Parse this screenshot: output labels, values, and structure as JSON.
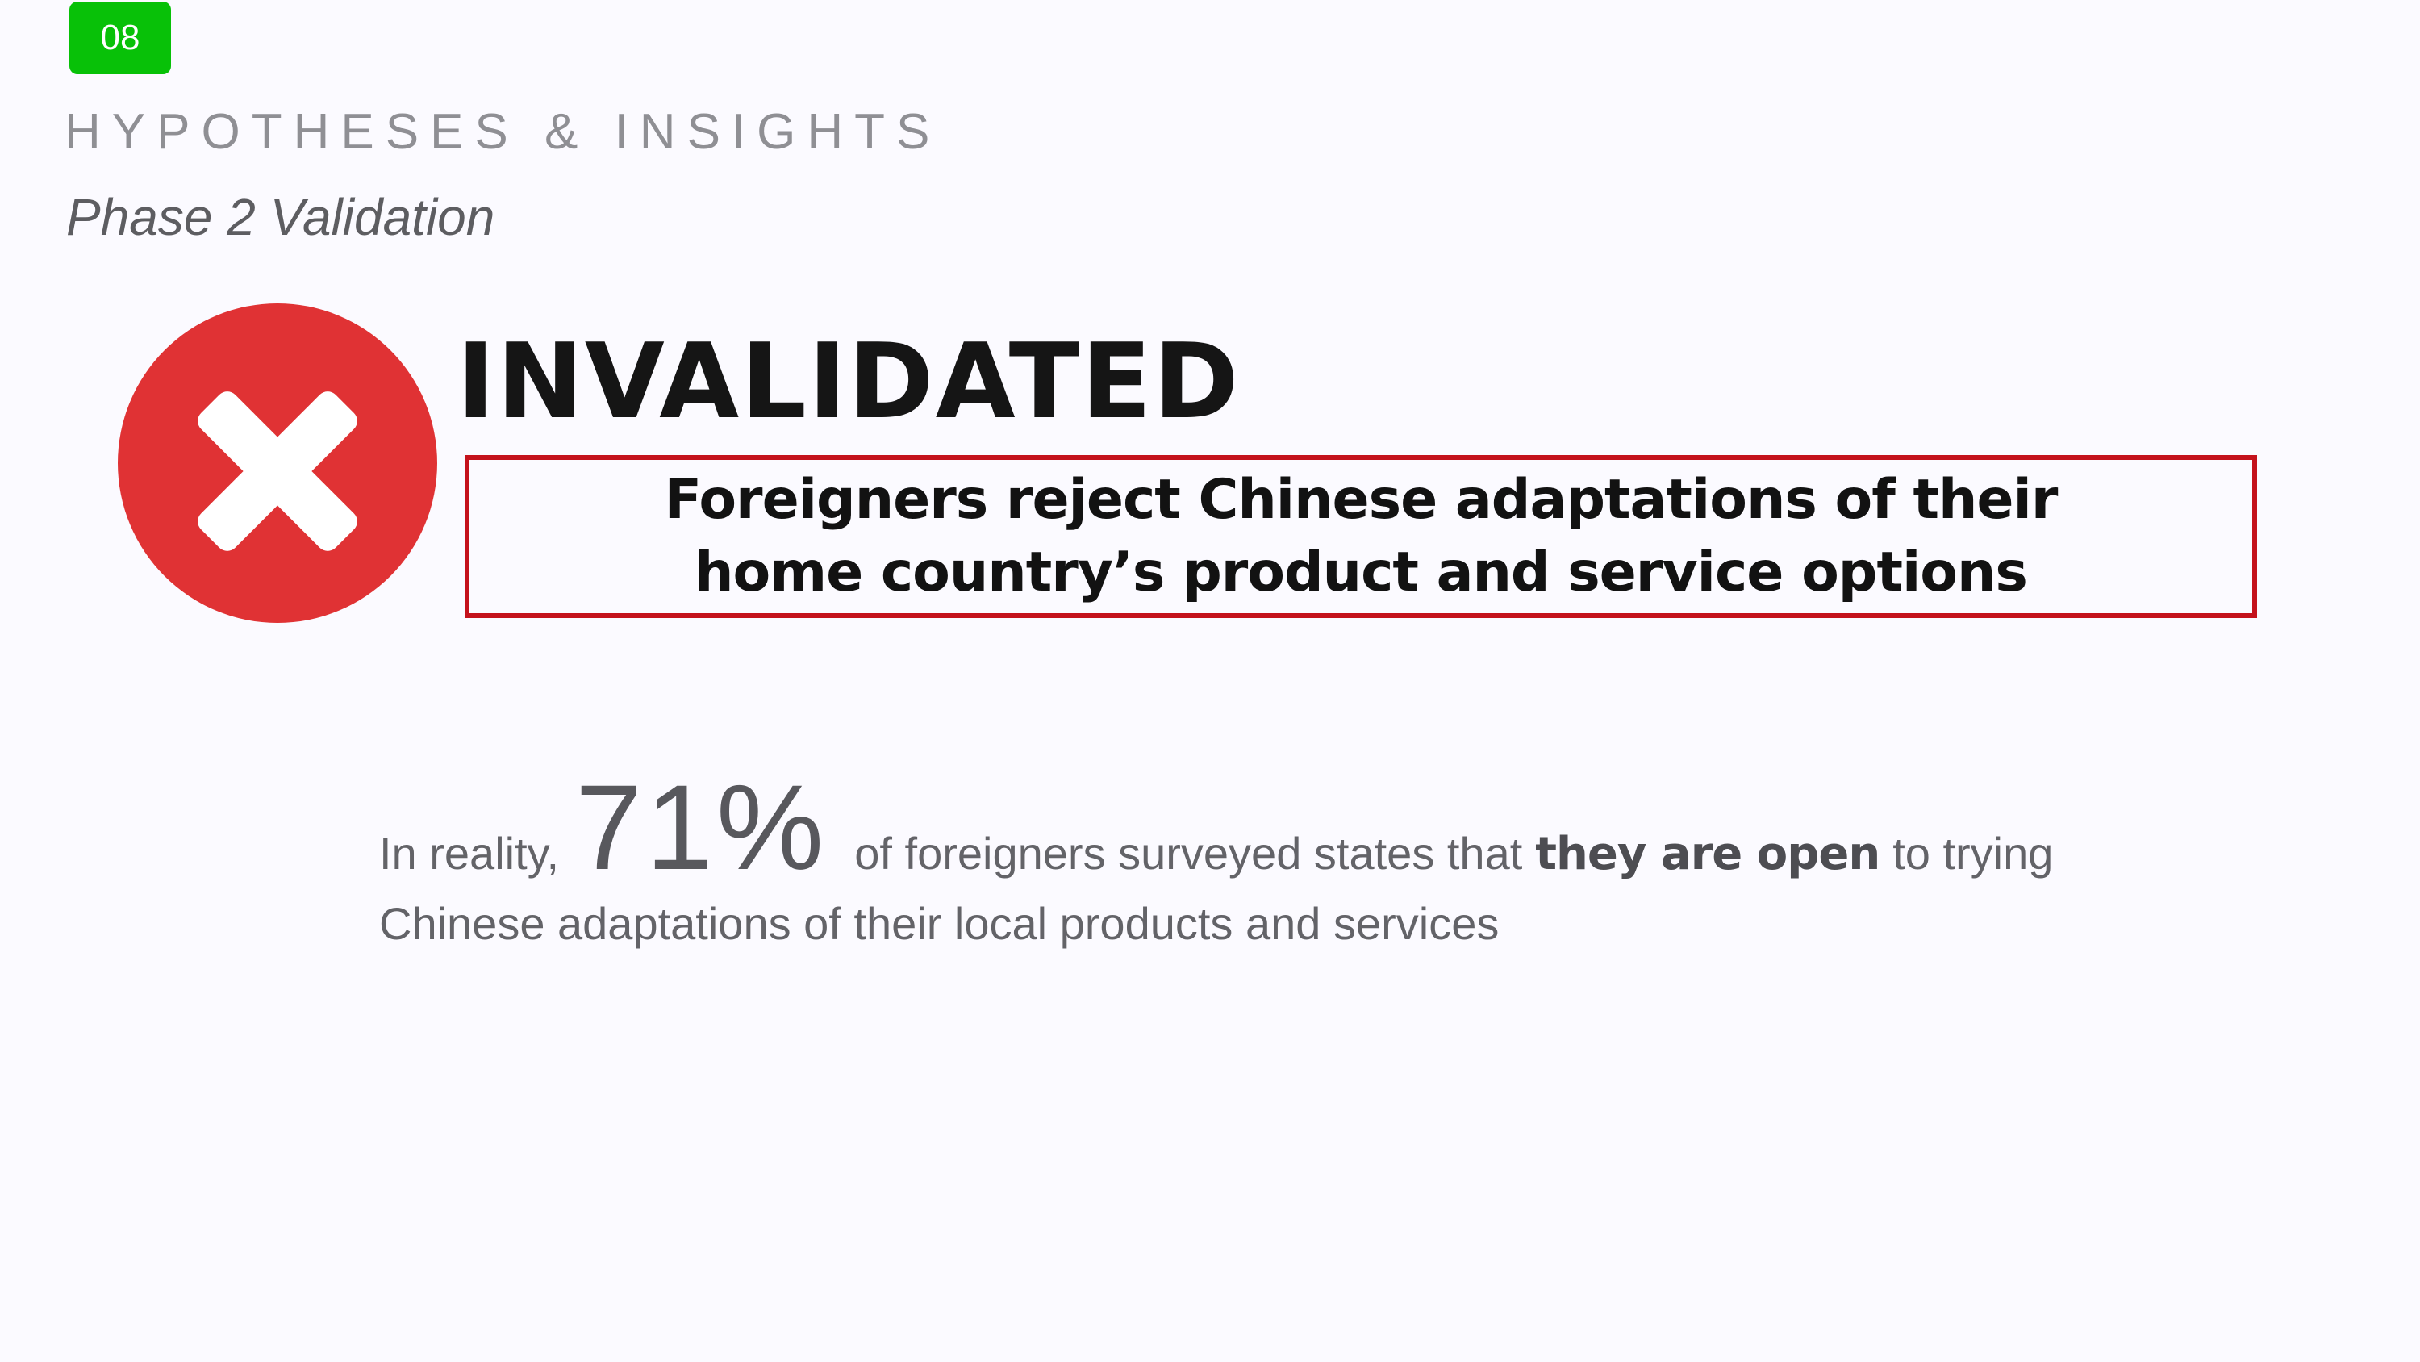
{
  "slide": {
    "page_number": "08",
    "section_title": "HYPOTHESES & INSIGHTS",
    "subtitle": "Phase 2 Validation"
  },
  "status": {
    "icon": "x-circle-icon",
    "label": "INVALIDATED",
    "color": "#e03234"
  },
  "hypothesis": {
    "text": "Foreigners reject Chinese adaptations of their home country’s product and service options",
    "border_color": "#c4121c"
  },
  "insight": {
    "prefix": "In reality,",
    "stat": "71%",
    "middle": "of foreigners surveyed states that",
    "emphasis": "they are open",
    "suffix": "to trying",
    "line2": "Chinese adaptations of their local products and services"
  }
}
